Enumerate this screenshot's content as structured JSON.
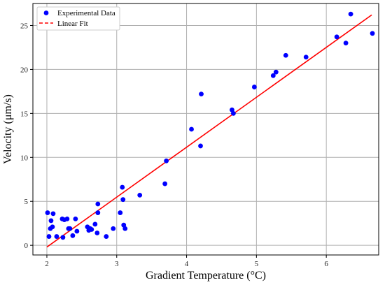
{
  "chart_data": {
    "type": "scatter",
    "xlabel": "Gradient Temperature (°C)",
    "ylabel": "Velocity (μm/s)",
    "xlim": [
      1.8,
      6.75
    ],
    "ylim": [
      -1.1,
      27.5
    ],
    "xticks": [
      2,
      3,
      4,
      5,
      6
    ],
    "yticks": [
      0,
      5,
      10,
      15,
      20,
      25
    ],
    "grid": true,
    "legend_position": "top-left",
    "series": [
      {
        "name": "Experimental Data",
        "kind": "scatter",
        "color": "#0000ff",
        "points": [
          [
            2.01,
            3.7
          ],
          [
            2.03,
            1.0
          ],
          [
            2.05,
            1.9
          ],
          [
            2.06,
            2.8
          ],
          [
            2.08,
            2.1
          ],
          [
            2.09,
            3.6
          ],
          [
            2.14,
            1.0
          ],
          [
            2.22,
            3.0
          ],
          [
            2.23,
            0.9
          ],
          [
            2.25,
            2.9
          ],
          [
            2.29,
            3.0
          ],
          [
            2.31,
            1.9
          ],
          [
            2.33,
            1.9
          ],
          [
            2.37,
            1.1
          ],
          [
            2.41,
            3.0
          ],
          [
            2.43,
            1.6
          ],
          [
            2.58,
            2.1
          ],
          [
            2.6,
            1.7
          ],
          [
            2.62,
            1.9
          ],
          [
            2.64,
            1.8
          ],
          [
            2.69,
            2.4
          ],
          [
            2.72,
            1.4
          ],
          [
            2.73,
            3.7
          ],
          [
            2.73,
            4.7
          ],
          [
            2.85,
            1.0
          ],
          [
            2.95,
            1.9
          ],
          [
            3.05,
            3.7
          ],
          [
            3.08,
            6.6
          ],
          [
            3.09,
            5.2
          ],
          [
            3.1,
            2.3
          ],
          [
            3.12,
            1.9
          ],
          [
            3.33,
            5.7
          ],
          [
            3.69,
            7.0
          ],
          [
            3.71,
            9.6
          ],
          [
            4.07,
            13.2
          ],
          [
            4.2,
            11.3
          ],
          [
            4.21,
            17.2
          ],
          [
            4.65,
            15.4
          ],
          [
            4.67,
            15.0
          ],
          [
            4.97,
            18.0
          ],
          [
            5.24,
            19.3
          ],
          [
            5.28,
            19.7
          ],
          [
            5.42,
            21.6
          ],
          [
            5.71,
            21.4
          ],
          [
            6.15,
            23.7
          ],
          [
            6.28,
            23.0
          ],
          [
            6.35,
            26.3
          ],
          [
            6.66,
            24.1
          ]
        ]
      },
      {
        "name": "Linear Fit",
        "kind": "line",
        "color": "#ff0000",
        "points": [
          [
            2.0,
            -0.2
          ],
          [
            6.65,
            26.2
          ]
        ]
      }
    ]
  }
}
